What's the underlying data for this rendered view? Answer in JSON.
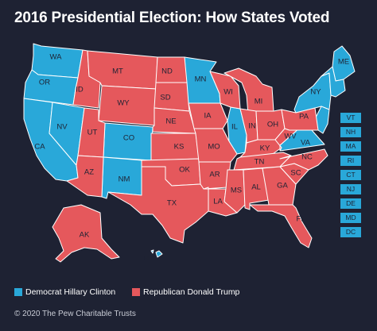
{
  "title": "2016 Presidential Election: How States Voted",
  "colors": {
    "democrat": "#29a8d9",
    "republican": "#e5585c",
    "background": "#1e2233"
  },
  "states": [
    {
      "abbr": "WA",
      "party": "D"
    },
    {
      "abbr": "OR",
      "party": "D"
    },
    {
      "abbr": "CA",
      "party": "D"
    },
    {
      "abbr": "NV",
      "party": "D"
    },
    {
      "abbr": "ID",
      "party": "R"
    },
    {
      "abbr": "MT",
      "party": "R"
    },
    {
      "abbr": "WY",
      "party": "R"
    },
    {
      "abbr": "UT",
      "party": "R"
    },
    {
      "abbr": "AZ",
      "party": "R"
    },
    {
      "abbr": "CO",
      "party": "D"
    },
    {
      "abbr": "NM",
      "party": "D"
    },
    {
      "abbr": "ND",
      "party": "R"
    },
    {
      "abbr": "SD",
      "party": "R"
    },
    {
      "abbr": "NE",
      "party": "R"
    },
    {
      "abbr": "KS",
      "party": "R"
    },
    {
      "abbr": "OK",
      "party": "R"
    },
    {
      "abbr": "TX",
      "party": "R"
    },
    {
      "abbr": "MN",
      "party": "D"
    },
    {
      "abbr": "IA",
      "party": "R"
    },
    {
      "abbr": "MO",
      "party": "R"
    },
    {
      "abbr": "AR",
      "party": "R"
    },
    {
      "abbr": "LA",
      "party": "R"
    },
    {
      "abbr": "WI",
      "party": "R"
    },
    {
      "abbr": "IL",
      "party": "D"
    },
    {
      "abbr": "MI",
      "party": "R"
    },
    {
      "abbr": "IN",
      "party": "R"
    },
    {
      "abbr": "OH",
      "party": "R"
    },
    {
      "abbr": "KY",
      "party": "R"
    },
    {
      "abbr": "TN",
      "party": "R"
    },
    {
      "abbr": "MS",
      "party": "R"
    },
    {
      "abbr": "AL",
      "party": "R"
    },
    {
      "abbr": "GA",
      "party": "R"
    },
    {
      "abbr": "FL",
      "party": "R"
    },
    {
      "abbr": "SC",
      "party": "R"
    },
    {
      "abbr": "NC",
      "party": "R"
    },
    {
      "abbr": "VA",
      "party": "D"
    },
    {
      "abbr": "WV",
      "party": "R"
    },
    {
      "abbr": "PA",
      "party": "R"
    },
    {
      "abbr": "NY",
      "party": "D"
    },
    {
      "abbr": "ME",
      "party": "D"
    },
    {
      "abbr": "AK",
      "party": "R"
    },
    {
      "abbr": "HI",
      "party": "D"
    }
  ],
  "small_states": [
    {
      "abbr": "VT",
      "party": "D"
    },
    {
      "abbr": "NH",
      "party": "D"
    },
    {
      "abbr": "MA",
      "party": "D"
    },
    {
      "abbr": "RI",
      "party": "D"
    },
    {
      "abbr": "CT",
      "party": "D"
    },
    {
      "abbr": "NJ",
      "party": "D"
    },
    {
      "abbr": "DE",
      "party": "D"
    },
    {
      "abbr": "MD",
      "party": "D"
    },
    {
      "abbr": "DC",
      "party": "D"
    }
  ],
  "legend": {
    "democrat_label": "Democrat Hillary Clinton",
    "republican_label": "Republican Donald Trump"
  },
  "copyright": "© 2020 The Pew Charitable Trusts"
}
